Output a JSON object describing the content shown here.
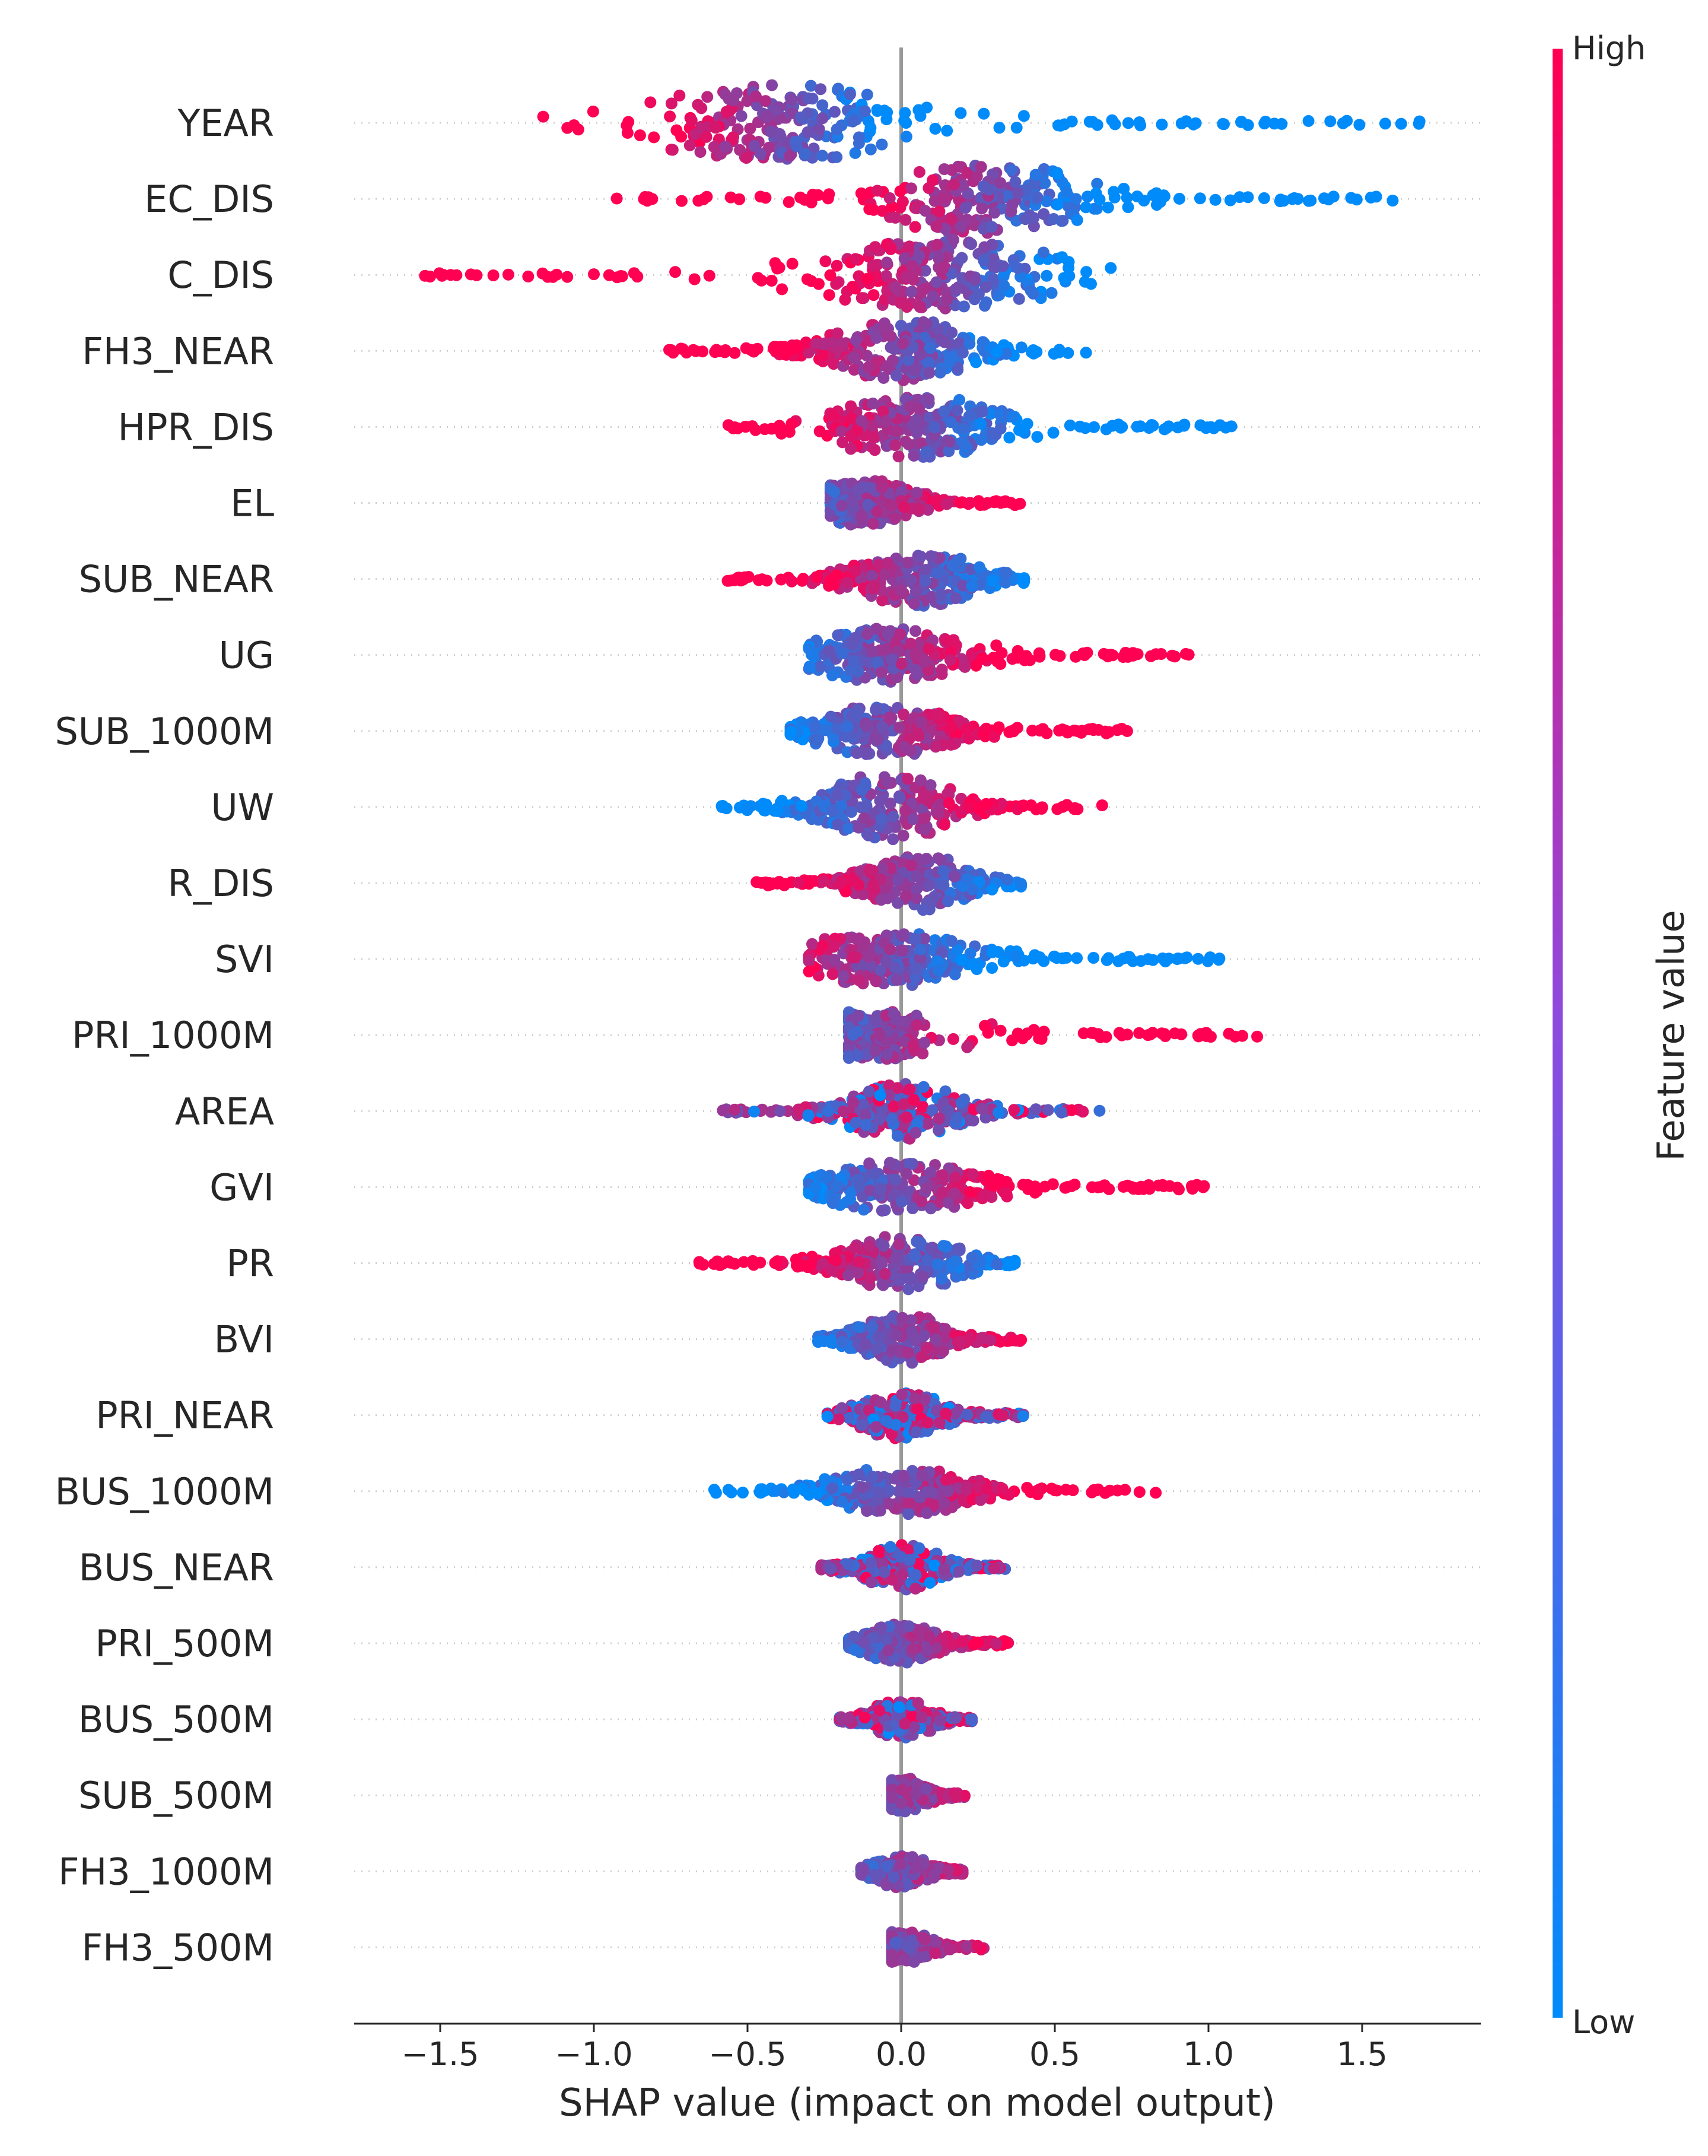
{
  "chart_data": {
    "type": "scatter",
    "subtype": "shap-beeswarm",
    "title": "",
    "xlabel": "SHAP value (impact on model output)",
    "ylabel": "",
    "xlim": [
      -1.8,
      1.88
    ],
    "xticks": [
      -1.5,
      -1.0,
      -0.5,
      0.0,
      0.5,
      1.0,
      1.5
    ],
    "xtick_labels": [
      "−1.5",
      "−1.0",
      "−0.5",
      "0.0",
      "0.5",
      "1.0",
      "1.5"
    ],
    "colorbar": {
      "title": "Feature value",
      "high_label": "High",
      "low_label": "Low",
      "high_color": "#ff0052",
      "low_color": "#008bfb"
    },
    "features": [
      {
        "name": "YEAR",
        "min": -1.21,
        "max": 1.7,
        "mode": -0.4,
        "hi_side": "neg",
        "spread": 0.9
      },
      {
        "name": "EC_DIS",
        "min": -0.93,
        "max": 1.6,
        "mode": 0.27,
        "hi_side": "neg",
        "spread": 0.85
      },
      {
        "name": "C_DIS",
        "min": -1.6,
        "max": 0.7,
        "mode": 0.15,
        "hi_side": "neg",
        "spread": 0.8
      },
      {
        "name": "FH3_NEAR",
        "min": -0.77,
        "max": 0.63,
        "mode": 0.0,
        "hi_side": "neg",
        "spread": 0.7
      },
      {
        "name": "HPR_DIS",
        "min": -0.58,
        "max": 1.08,
        "mode": 0.05,
        "hi_side": "neg",
        "spread": 0.7
      },
      {
        "name": "EL",
        "min": -0.23,
        "max": 0.39,
        "mode": -0.12,
        "hi_side": "pos",
        "spread": 0.45
      },
      {
        "name": "SUB_NEAR",
        "min": -0.57,
        "max": 0.4,
        "mode": 0.05,
        "hi_side": "neg",
        "spread": 0.6
      },
      {
        "name": "UG",
        "min": -0.3,
        "max": 0.94,
        "mode": -0.05,
        "hi_side": "pos",
        "spread": 0.55
      },
      {
        "name": "SUB_1000M",
        "min": -0.36,
        "max": 0.75,
        "mode": -0.05,
        "hi_side": "pos",
        "spread": 0.5
      },
      {
        "name": "UW",
        "min": -0.6,
        "max": 0.68,
        "mode": -0.05,
        "hi_side": "pos",
        "spread": 0.75
      },
      {
        "name": "R_DIS",
        "min": -0.48,
        "max": 0.39,
        "mode": 0.05,
        "hi_side": "neg",
        "spread": 0.6
      },
      {
        "name": "SVI",
        "min": -0.3,
        "max": 1.04,
        "mode": -0.05,
        "hi_side": "neg",
        "spread": 0.55
      },
      {
        "name": "PRI_1000M",
        "min": -0.17,
        "max": 1.16,
        "mode": -0.08,
        "hi_side": "pos",
        "spread": 0.45
      },
      {
        "name": "AREA",
        "min": -0.6,
        "max": 0.65,
        "mode": 0.0,
        "hi_side": "mix",
        "spread": 0.55
      },
      {
        "name": "GVI",
        "min": -0.3,
        "max": 1.0,
        "mode": 0.0,
        "hi_side": "pos",
        "spread": 0.5
      },
      {
        "name": "PR",
        "min": -0.67,
        "max": 0.37,
        "mode": 0.0,
        "hi_side": "neg",
        "spread": 0.55
      },
      {
        "name": "BVI",
        "min": -0.27,
        "max": 0.4,
        "mode": 0.0,
        "hi_side": "pos",
        "spread": 0.5
      },
      {
        "name": "PRI_NEAR",
        "min": -0.24,
        "max": 0.4,
        "mode": 0.0,
        "hi_side": "mix",
        "spread": 0.45
      },
      {
        "name": "BUS_1000M",
        "min": -0.62,
        "max": 0.83,
        "mode": 0.0,
        "hi_side": "pos",
        "spread": 0.45
      },
      {
        "name": "BUS_NEAR",
        "min": -0.26,
        "max": 0.35,
        "mode": 0.0,
        "hi_side": "mix",
        "spread": 0.4
      },
      {
        "name": "PRI_500M",
        "min": -0.17,
        "max": 0.35,
        "mode": 0.0,
        "hi_side": "pos",
        "spread": 0.3
      },
      {
        "name": "BUS_500M",
        "min": -0.2,
        "max": 0.23,
        "mode": 0.0,
        "hi_side": "mix",
        "spread": 0.3
      },
      {
        "name": "SUB_500M",
        "min": -0.03,
        "max": 0.21,
        "mode": 0.0,
        "hi_side": "pos",
        "spread": 0.2
      },
      {
        "name": "FH3_1000M",
        "min": -0.13,
        "max": 0.2,
        "mode": 0.0,
        "hi_side": "pos",
        "spread": 0.2
      },
      {
        "name": "FH3_500M",
        "min": -0.03,
        "max": 0.27,
        "mode": 0.0,
        "hi_side": "pos",
        "spread": 0.18
      }
    ]
  }
}
